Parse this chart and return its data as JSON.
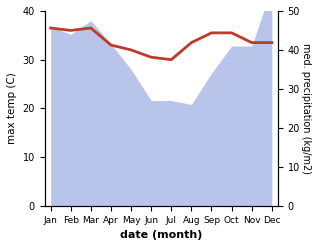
{
  "months": [
    "Jan",
    "Feb",
    "Mar",
    "Apr",
    "May",
    "Jun",
    "Jul",
    "Aug",
    "Sep",
    "Oct",
    "Nov",
    "Dec"
  ],
  "month_indices": [
    0,
    1,
    2,
    3,
    4,
    5,
    6,
    7,
    8,
    9,
    10,
    11
  ],
  "temperature": [
    36.5,
    36.0,
    36.5,
    33.0,
    32.0,
    30.5,
    30.0,
    33.5,
    35.5,
    35.5,
    33.5,
    33.5
  ],
  "precipitation": [
    46.0,
    44.0,
    47.5,
    41.5,
    35.0,
    27.0,
    27.0,
    26.0,
    34.0,
    41.0,
    41.0,
    56.0
  ],
  "temp_ylim": [
    0,
    40
  ],
  "precip_ylim": [
    0,
    50
  ],
  "temp_color": "#c0392b",
  "precip_fill_color": "#b8c4ea",
  "xlabel": "date (month)",
  "ylabel_left": "max temp (C)",
  "ylabel_right": "med. precipitation (kg/m2)",
  "temp_linewidth": 2.0,
  "bg_color": "#ffffff"
}
